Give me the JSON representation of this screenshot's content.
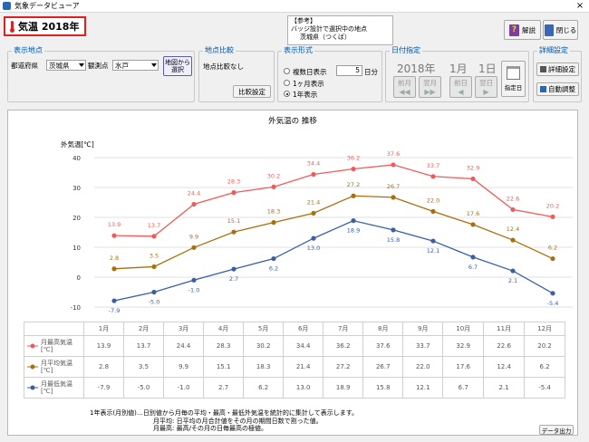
{
  "window": {
    "title": "気象データビューア",
    "close": "×"
  },
  "header": {
    "title": "気温 2018年",
    "note_lines": [
      "【参考】",
      "バッジ設計で選択中の地点",
      "茨城県（つくば）"
    ]
  },
  "toolbar": {
    "help_label": "解説",
    "close_label": "閉じる"
  },
  "location": {
    "legend": "表示地点",
    "pref_label": "都道府県",
    "pref_value": "茨城県",
    "obs_label": "観測点",
    "obs_value": "水戸",
    "map_button": "地図から選択"
  },
  "compare": {
    "legend": "地点比較",
    "status": "地点比較なし",
    "button": "比較設定"
  },
  "format": {
    "legend": "表示形式",
    "options": [
      "複数日表示",
      "1ヶ月表示",
      "1年表示"
    ],
    "days_value": "5",
    "days_unit": "日分",
    "selected": 2
  },
  "date": {
    "legend": "日付指定",
    "year": "2018年",
    "month": "1月",
    "day": "1日",
    "buttons": [
      [
        "前月",
        "翌月"
      ],
      [
        "前日",
        "翌日"
      ]
    ],
    "pick_label": "指定日"
  },
  "detail": {
    "legend": "詳細設定",
    "buttons": [
      "詳細設定",
      "自動調整"
    ]
  },
  "chart_data": {
    "type": "line",
    "title": "外気温の 推移",
    "ylabel": "外気温[℃]",
    "categories": [
      "1月",
      "2月",
      "3月",
      "4月",
      "5月",
      "6月",
      "7月",
      "8月",
      "9月",
      "10月",
      "11月",
      "12月"
    ],
    "ylim": [
      -10,
      40
    ],
    "yticks": [
      40,
      30,
      20,
      10,
      0,
      -10
    ],
    "grid": true,
    "series": [
      {
        "name": "月最高気温[℃]",
        "color": "#f25a5a",
        "values": [
          13.9,
          13.7,
          24.4,
          28.3,
          30.2,
          34.4,
          36.2,
          37.6,
          33.7,
          32.9,
          22.6,
          20.2
        ]
      },
      {
        "name": "月平均気温[℃]",
        "color": "#a8700c",
        "values": [
          2.8,
          3.5,
          9.9,
          15.1,
          18.3,
          21.4,
          27.2,
          26.7,
          22.0,
          17.6,
          12.4,
          6.2
        ]
      },
      {
        "name": "月最低気温[℃]",
        "color": "#3a5fa8",
        "values": [
          -7.9,
          -5.0,
          -1.0,
          2.7,
          6.2,
          13.0,
          18.9,
          15.8,
          12.1,
          6.7,
          2.1,
          -5.4
        ]
      }
    ]
  },
  "footnotes": [
    "1年表示(月別値)…日別値から月毎の平均・最高・最低外気温を統計的に集計して表示します。",
    "月平均: 日平均の月合計値をその月の期間日数で割った値。",
    "月最高: 最高/その月の日毎最高の極値。"
  ],
  "export_button": "データ出力"
}
